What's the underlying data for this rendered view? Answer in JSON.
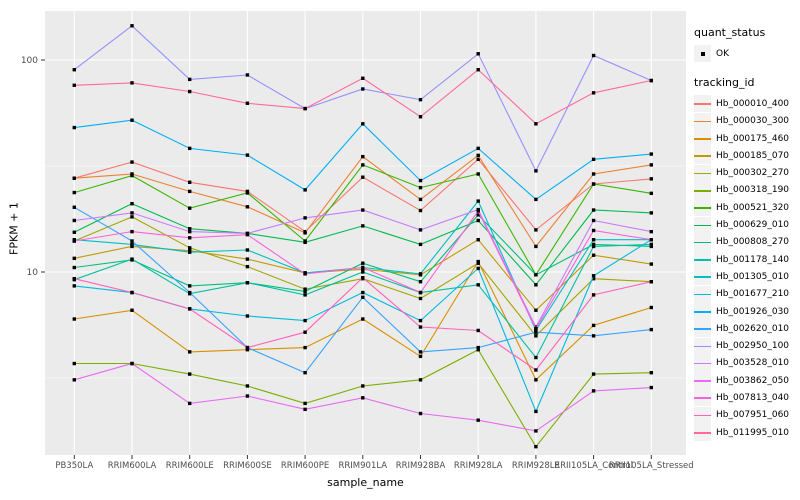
{
  "figure": {
    "background": "#ffffff",
    "panel_background": "#ebebeb",
    "grid_color": "#ffffff",
    "point_color": "#000000",
    "tick_text_color": "#4d4d4d",
    "title_text_color": "#000000"
  },
  "y_axis": {
    "title": "FPKM + 1",
    "tick_labels": [
      "100",
      "10"
    ],
    "tick_values": [
      100,
      10
    ]
  },
  "x_axis": {
    "title": "sample_name"
  },
  "legend": {
    "quant_status": {
      "title": "quant_status",
      "items": [
        {
          "label": "OK"
        }
      ]
    },
    "tracking_id_title": "tracking_id"
  },
  "chart_data": {
    "type": "line",
    "title": "",
    "xlabel": "sample_name",
    "ylabel": "FPKM + 1",
    "y_scale": "log10",
    "ylim": [
      1.3,
      170
    ],
    "grid": "major-and-minor-white-on-grey",
    "legend_position": "right",
    "major_grid_values": [
      100,
      10
    ],
    "minor_grid_values": [
      31.62,
      3.162
    ],
    "point_marker": "small black square (quant_status = OK)",
    "categories": [
      "PB350LA",
      "RRIM600LA",
      "RRIM600LE",
      "RRIM600SE",
      "RRIM600PE",
      "RRIM901LA",
      "RRIM928BA",
      "RRIM928LA",
      "RRIM928LE",
      "RRII105LA_Control",
      "RRII105LA_Stressed"
    ],
    "series": [
      {
        "name": "Hb_000010_400",
        "color": "#F8766D",
        "values": [
          27.7,
          33,
          26.5,
          24,
          15.5,
          28,
          19.5,
          34,
          15.8,
          26,
          27.5
        ]
      },
      {
        "name": "Hb_000030_300",
        "color": "#EA8331",
        "values": [
          27.7,
          29,
          24,
          20.3,
          15.3,
          35,
          22,
          35.5,
          13.2,
          29,
          32
        ]
      },
      {
        "name": "Hb_000175_460",
        "color": "#D89000",
        "values": [
          6.0,
          6.6,
          4.2,
          4.3,
          4.4,
          6.0,
          4.0,
          11.2,
          3.1,
          5.6,
          6.8
        ]
      },
      {
        "name": "Hb_000185_070",
        "color": "#C09B00",
        "values": [
          11.6,
          13.2,
          12.6,
          11.5,
          9.9,
          10.3,
          9.7,
          14.2,
          6.6,
          12.0,
          10.9
        ]
      },
      {
        "name": "Hb_000302_270",
        "color": "#A3A500",
        "values": [
          14.0,
          18.2,
          13.0,
          10.6,
          8.3,
          9.3,
          7.5,
          11.0,
          5.0,
          9.3,
          9.0
        ]
      },
      {
        "name": "Hb_000318_190",
        "color": "#7CAE00",
        "values": [
          3.7,
          3.7,
          3.3,
          2.9,
          2.4,
          2.9,
          3.1,
          4.3,
          1.5,
          3.3,
          3.35
        ]
      },
      {
        "name": "Hb_000521_320",
        "color": "#39B600",
        "values": [
          23.7,
          28.5,
          20.0,
          23.6,
          14.0,
          32,
          25,
          29,
          9.7,
          26,
          23.5
        ]
      },
      {
        "name": "Hb_000629_010",
        "color": "#00BB4E",
        "values": [
          15.4,
          21,
          16,
          15.2,
          13.8,
          16.5,
          13.5,
          17.5,
          8.7,
          19.6,
          19.0
        ]
      },
      {
        "name": "Hb_000808_270",
        "color": "#00BF7D",
        "values": [
          10.5,
          11.4,
          8.6,
          8.9,
          8.1,
          11.0,
          9.0,
          18.6,
          9.7,
          13.5,
          13.2
        ]
      },
      {
        "name": "Hb_001178_140",
        "color": "#00C1A3",
        "values": [
          9.2,
          11.5,
          7.9,
          8.9,
          7.8,
          10.0,
          8.0,
          8.7,
          3.95,
          13.2,
          13.5
        ]
      },
      {
        "name": "Hb_001305_010",
        "color": "#00BFC4",
        "values": [
          14.2,
          13.5,
          12.4,
          12.7,
          9.9,
          10.5,
          9.8,
          21.6,
          5.3,
          14.2,
          14.2
        ]
      },
      {
        "name": "Hb_001677_210",
        "color": "#00BAE0",
        "values": [
          8.6,
          8.0,
          6.7,
          6.2,
          5.9,
          8.0,
          5.9,
          10.4,
          2.2,
          9.6,
          14.2
        ]
      },
      {
        "name": "Hb_001926_030",
        "color": "#00B0F6",
        "values": [
          48,
          52,
          38.3,
          35.6,
          24.4,
          50,
          27,
          38.3,
          22,
          34,
          36
        ]
      },
      {
        "name": "Hb_002620_010",
        "color": "#35A2FF",
        "values": [
          20.2,
          14,
          8.0,
          4.4,
          3.35,
          7.6,
          4.2,
          4.4,
          5.2,
          5.0,
          5.35
        ]
      },
      {
        "name": "Hb_002950_100",
        "color": "#9590FF",
        "values": [
          90,
          145,
          81,
          85,
          59,
          73,
          65,
          107,
          30,
          105,
          80
        ]
      },
      {
        "name": "Hb_003528_010",
        "color": "#C77CFF",
        "values": [
          17.5,
          19.0,
          15.5,
          15.2,
          18.0,
          19.6,
          15.8,
          19.7,
          5.5,
          17.5,
          15.5
        ]
      },
      {
        "name": "Hb_003862_050",
        "color": "#E76BF3",
        "values": [
          3.1,
          3.7,
          2.4,
          2.6,
          2.25,
          2.55,
          2.15,
          2.0,
          1.78,
          2.75,
          2.85
        ]
      },
      {
        "name": "Hb_007813_040",
        "color": "#FA62DB",
        "values": [
          14.0,
          15.5,
          14.5,
          15.0,
          9.8,
          10.5,
          8.0,
          19.4,
          5.4,
          15.7,
          14.2
        ]
      },
      {
        "name": "Hb_007951_060",
        "color": "#FF62BC",
        "values": [
          9.3,
          8.0,
          6.7,
          4.4,
          5.2,
          9.4,
          5.5,
          5.3,
          3.45,
          7.8,
          9.0
        ]
      },
      {
        "name": "Hb_011995_010",
        "color": "#FF6A98",
        "values": [
          76,
          78,
          71,
          62.5,
          59,
          82,
          54,
          90,
          50,
          70,
          80
        ]
      }
    ]
  }
}
